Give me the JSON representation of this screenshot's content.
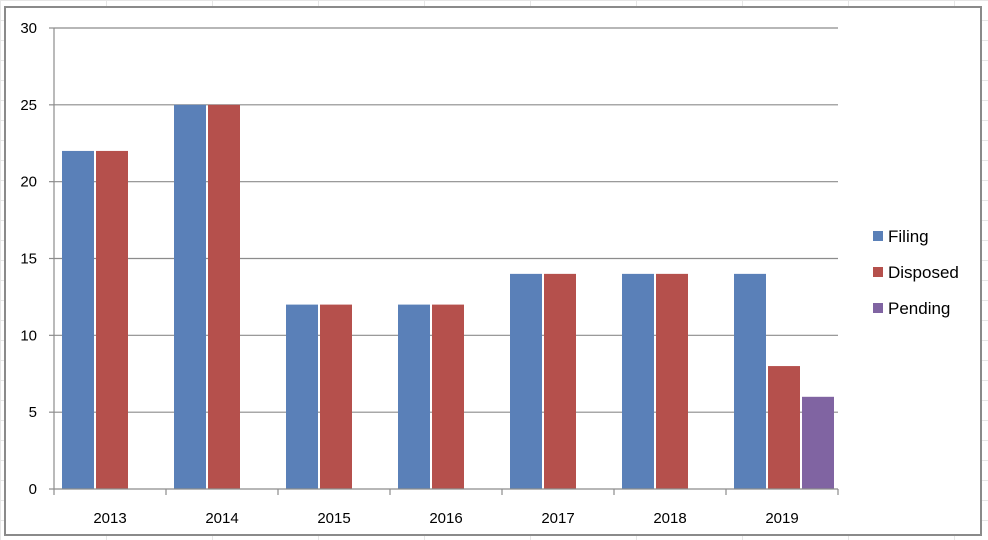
{
  "chart_data": {
    "type": "bar",
    "categories": [
      "2013",
      "2014",
      "2015",
      "2016",
      "2017",
      "2018",
      "2019"
    ],
    "series": [
      {
        "name": "Filing",
        "color": "#5a80b8",
        "values": [
          22,
          25,
          12,
          12,
          14,
          14,
          14
        ]
      },
      {
        "name": "Disposed",
        "color": "#b5504c",
        "values": [
          22,
          25,
          12,
          12,
          14,
          14,
          8
        ]
      },
      {
        "name": "Pending",
        "color": "#8064a2",
        "values": [
          null,
          null,
          null,
          null,
          null,
          null,
          6
        ]
      }
    ],
    "ylim": [
      0,
      30
    ],
    "yticks": [
      "0",
      "5",
      "10",
      "15",
      "20",
      "25",
      "30"
    ],
    "grid": true,
    "legend": "right"
  }
}
